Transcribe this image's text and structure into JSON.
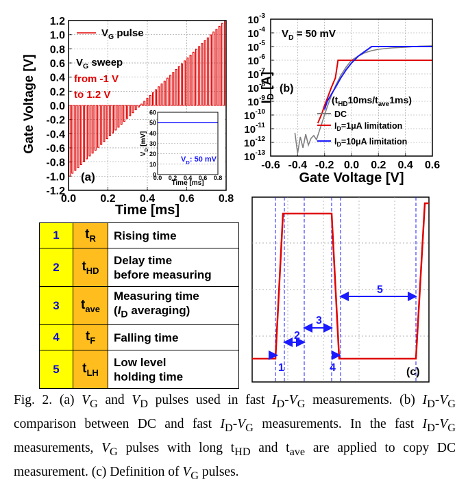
{
  "panel_a": {
    "legend": "V<sub>G</sub> pulse",
    "annotation_sweep": "V<sub>G</sub> sweep",
    "annotation_from": "from -1 V",
    "annotation_to": "to 1.2 V",
    "panel_label": "(a)",
    "ylabel": "Gate Voltage [V]",
    "xlabel": "Time [ms]",
    "inset": {
      "ylabel": "V<sub>D</sub> [mV]",
      "xlabel": "Time [ms]",
      "label": "V<sub>D</sub>: 50 mV"
    }
  },
  "panel_b": {
    "annotation_vd": "V<sub>D</sub> = 50 mV",
    "panel_label": "(b)",
    "annotation_timing": "(t<sub>HD</sub>10ms/t<sub>ave</sub>1ms)",
    "ylabel": "I<sub>D</sub> [A]",
    "xlabel": "Gate Voltage [V]",
    "legend": [
      "DC",
      "I<sub>D</sub>=1μA limitation",
      "I<sub>D</sub>=10μA limitation"
    ]
  },
  "panel_c": {
    "panel_label": "(c)",
    "markers": [
      "1",
      "2",
      "3",
      "4",
      "5"
    ]
  },
  "table": {
    "rows": [
      {
        "num": "1",
        "symbol": "t<sub>R</sub>",
        "desc_lines": [
          "Rising time"
        ]
      },
      {
        "num": "2",
        "symbol": "t<sub>HD</sub>",
        "desc_lines": [
          "Delay time",
          "before measuring"
        ]
      },
      {
        "num": "3",
        "symbol": "t<sub>ave</sub>",
        "desc_lines": [
          "Measuring time",
          "(<i>I</i><sub>D</sub> averaging)"
        ]
      },
      {
        "num": "4",
        "symbol": "t<sub>F</sub>",
        "desc_lines": [
          "Falling time"
        ]
      },
      {
        "num": "5",
        "symbol": "t<sub>LH</sub>",
        "desc_lines": [
          "Low level",
          "holding time"
        ]
      }
    ]
  },
  "caption": "Fig. 2. (a) <i>V</i><sub>G</sub> and <i>V</i><sub>D</sub> pulses used in fast <i>I</i><sub>D</sub>-<i>V</i><sub>G</sub> measurements. (b) <i>I</i><sub>D</sub>-<i>V</i><sub>G</sub> comparison between DC and fast <i>I</i><sub>D</sub>-<i>V</i><sub>G</sub> measurements. In the fast <i>I</i><sub>D</sub>-<i>V</i><sub>G</sub> measurements, <i>V</i><sub>G</sub> pulses with long t<sub>HD</sub> and t<sub>ave</sub> are applied to copy DC measurement. (c) Definition of <i>V</i><sub>G</sub> pulses.",
  "chart_data": [
    {
      "panel": "a",
      "type": "line",
      "x_ticks": [
        "0.0",
        "0.2",
        "0.4",
        "0.6",
        "0.8"
      ],
      "y_ticks": [
        "1.2",
        "1.0",
        "0.8",
        "0.6",
        "0.4",
        "0.2",
        "0.0",
        "-0.2",
        "-0.4",
        "-0.6",
        "-0.8",
        "-1.0",
        "-1.2"
      ],
      "xlim": [
        0,
        0.8
      ],
      "ylim": [
        -1.2,
        1.2
      ],
      "series": [
        {
          "name": "V_G pulse",
          "color": "#e00000",
          "pulse_count": 55,
          "baseline": 0,
          "sweep_start": -1.0,
          "sweep_end": 1.2,
          "t_start": 0.005,
          "t_end": 0.795
        }
      ]
    },
    {
      "panel": "a-inset",
      "type": "line",
      "x_ticks": [
        "0.0",
        "0.2",
        "0.4",
        "0.6",
        "0.8"
      ],
      "y_ticks": [
        "60",
        "50",
        "40",
        "30",
        "20",
        "10",
        "0"
      ],
      "xlim": [
        0,
        0.8
      ],
      "ylim": [
        0,
        60
      ],
      "series": [
        {
          "color": "#1a1aff",
          "value": 50
        }
      ]
    },
    {
      "panel": "b",
      "type": "line",
      "y_scale": "log",
      "x_ticks": [
        "-0.6",
        "-0.4",
        "-0.2",
        "0.0",
        "0.2",
        "0.4",
        "0.6"
      ],
      "y_ticks": [
        "10^-3",
        "10^-4",
        "10^-5",
        "10^-6",
        "10^-7",
        "10^-8",
        "10^-9",
        "10^-10",
        "10^-11",
        "10^-12",
        "10^-13"
      ],
      "xlim": [
        -0.6,
        0.6
      ],
      "ylim_exp": [
        -13,
        -3
      ],
      "series": [
        {
          "name": "DC",
          "color": "#808080",
          "x": [
            -0.42,
            -0.4,
            -0.38,
            -0.36,
            -0.34,
            -0.32,
            -0.3,
            -0.28,
            -0.26,
            -0.24,
            -0.22,
            -0.2,
            -0.18,
            -0.15,
            -0.12,
            -0.08,
            -0.04,
            0.0,
            0.05,
            0.1,
            0.15,
            0.2,
            0.3,
            0.4,
            0.5,
            0.6
          ],
          "log_y": [
            -11.3,
            -12.8,
            -11.6,
            -12.4,
            -11.4,
            -12.2,
            -11.7,
            -11.5,
            -11.8,
            -11.2,
            -10.6,
            -10.0,
            -9.4,
            -8.6,
            -7.9,
            -7.1,
            -6.5,
            -6.0,
            -5.7,
            -5.45,
            -5.3,
            -5.2,
            -5.1,
            -5.05,
            -4.98,
            -4.95
          ]
        },
        {
          "name": "I_D=1μA limitation",
          "color": "#e00000",
          "x": [
            -0.25,
            -0.22,
            -0.2,
            -0.18,
            -0.15,
            -0.12,
            -0.1,
            0.0,
            0.6
          ],
          "log_y": [
            -10.6,
            -9.9,
            -9.3,
            -8.8,
            -8.0,
            -7.3,
            -6.0,
            -6.0,
            -6.0
          ]
        },
        {
          "name": "I_D=10μA limitation",
          "color": "#1a1aff",
          "x": [
            -0.2,
            -0.18,
            -0.15,
            -0.12,
            -0.08,
            -0.04,
            0.0,
            0.05,
            0.1,
            0.15,
            0.6
          ],
          "log_y": [
            -9.6,
            -9.0,
            -8.5,
            -8.0,
            -7.3,
            -6.7,
            -6.2,
            -5.7,
            -5.35,
            -5.0,
            -5.0
          ]
        }
      ]
    }
  ]
}
